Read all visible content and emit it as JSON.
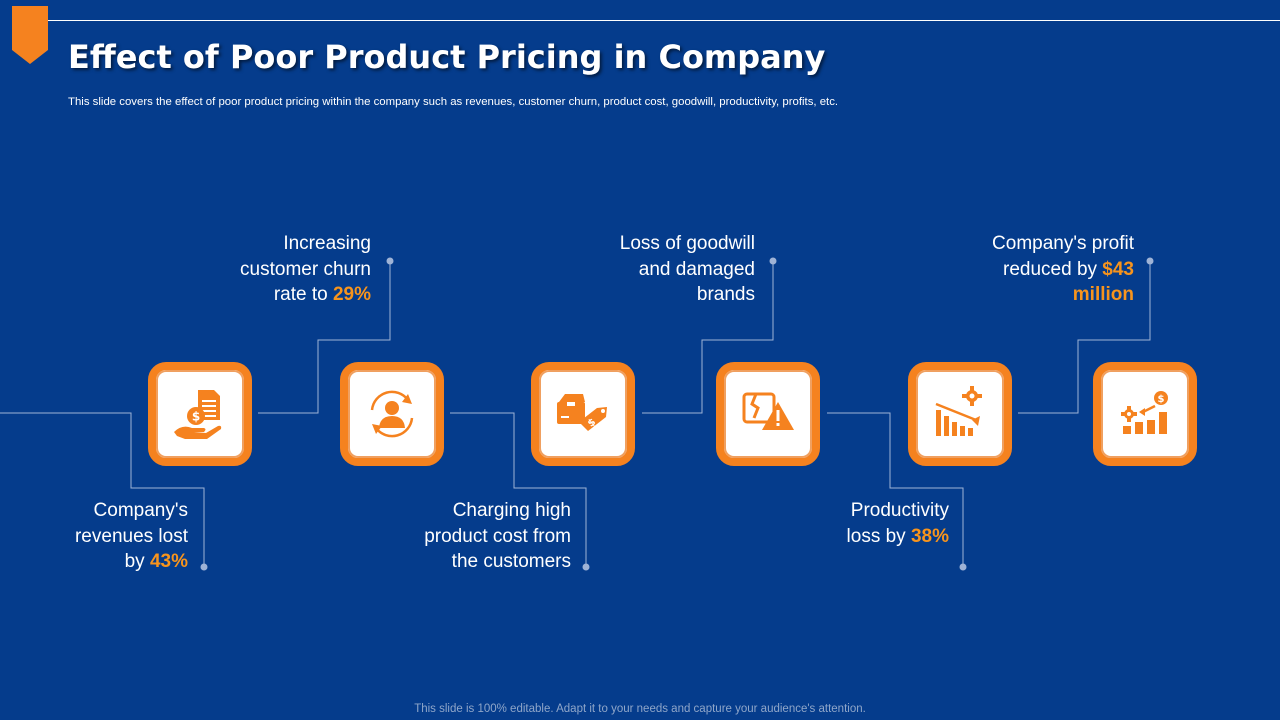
{
  "slide": {
    "title": "Effect of Poor Product Pricing in Company",
    "subtitle": "This slide covers the effect of poor product pricing within the company such as revenues, customer churn, product cost, goodwill, productivity, profits, etc.",
    "footer": "This slide is 100% editable. Adapt it to your needs and capture your audience's attention."
  },
  "colors": {
    "background": "#053c8c",
    "accent": "#f5821f",
    "text": "#ffffff"
  },
  "items": [
    {
      "icon": "revenue-hand-document-icon",
      "label": {
        "line1": "Company's",
        "line2": "revenues lost",
        "line3_pre": "by ",
        "highlight": "43%"
      }
    },
    {
      "icon": "customer-churn-cycle-icon",
      "label": {
        "line1": "Increasing",
        "line2": "customer churn",
        "line3_pre": "rate to ",
        "highlight": "29%"
      }
    },
    {
      "icon": "box-price-tag-icon",
      "label": {
        "line1": "Charging high",
        "line2": "product cost from",
        "line3": "the customers"
      }
    },
    {
      "icon": "broken-image-warning-icon",
      "label": {
        "line1": "Loss of goodwill",
        "line2": "and damaged",
        "line3": "brands"
      }
    },
    {
      "icon": "declining-chart-gear-icon",
      "label": {
        "line1": "Productivity",
        "line2_pre": "loss by ",
        "highlight": "38%"
      }
    },
    {
      "icon": "rising-chart-gear-dollar-icon",
      "label": {
        "line1": "Company's profit",
        "line2_pre": "reduced by ",
        "highlight": "$43",
        "line3_highlight": "million"
      }
    }
  ]
}
